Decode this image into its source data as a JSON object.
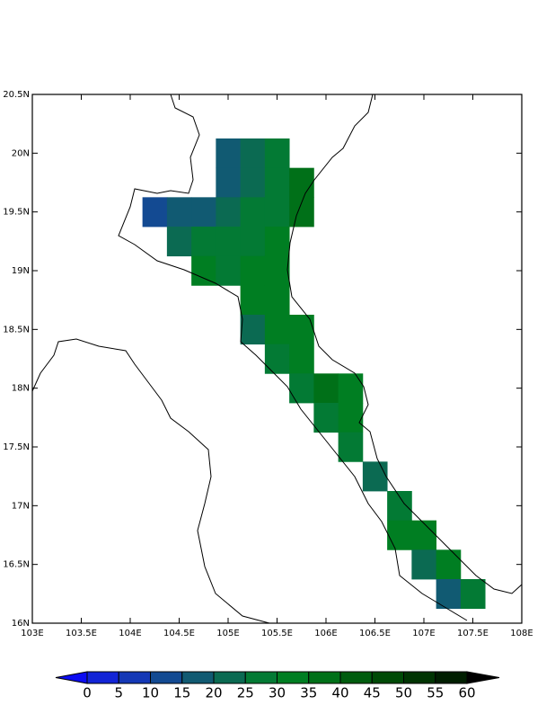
{
  "map": {
    "xlim": [
      103,
      108
    ],
    "ylim": [
      16,
      20.5
    ],
    "xticks": [
      {
        "value": 103,
        "label": "103E"
      },
      {
        "value": 103.5,
        "label": "103.5E"
      },
      {
        "value": 104,
        "label": "104E"
      },
      {
        "value": 104.5,
        "label": "104.5E"
      },
      {
        "value": 105,
        "label": "105E"
      },
      {
        "value": 105.5,
        "label": "105.5E"
      },
      {
        "value": 106,
        "label": "106E"
      },
      {
        "value": 106.5,
        "label": "106.5E"
      },
      {
        "value": 107,
        "label": "107E"
      },
      {
        "value": 107.5,
        "label": "107.5E"
      },
      {
        "value": 108,
        "label": "108E"
      }
    ],
    "yticks": [
      {
        "value": 16,
        "label": "16N"
      },
      {
        "value": 16.5,
        "label": "16.5N"
      },
      {
        "value": 17,
        "label": "17N"
      },
      {
        "value": 17.5,
        "label": "17.5N"
      },
      {
        "value": 18,
        "label": "18N"
      },
      {
        "value": 18.5,
        "label": "18.5N"
      },
      {
        "value": 19,
        "label": "19N"
      },
      {
        "value": 19.5,
        "label": "19.5N"
      },
      {
        "value": 20,
        "label": "20N"
      },
      {
        "value": 20.5,
        "label": "20.5N"
      }
    ],
    "cells": [
      {
        "lon": 105.0,
        "lat": 20.0,
        "value": 15
      },
      {
        "lon": 105.25,
        "lat": 20.0,
        "value": 20
      },
      {
        "lon": 105.5,
        "lat": 20.0,
        "value": 28
      },
      {
        "lon": 105.0,
        "lat": 19.75,
        "value": 15
      },
      {
        "lon": 105.25,
        "lat": 19.75,
        "value": 22
      },
      {
        "lon": 105.5,
        "lat": 19.75,
        "value": 28
      },
      {
        "lon": 105.75,
        "lat": 19.75,
        "value": 35
      },
      {
        "lon": 104.25,
        "lat": 19.5,
        "value": 10
      },
      {
        "lon": 104.5,
        "lat": 19.5,
        "value": 15
      },
      {
        "lon": 104.75,
        "lat": 19.5,
        "value": 17
      },
      {
        "lon": 105.0,
        "lat": 19.5,
        "value": 22
      },
      {
        "lon": 105.25,
        "lat": 19.5,
        "value": 26
      },
      {
        "lon": 105.5,
        "lat": 19.5,
        "value": 28
      },
      {
        "lon": 105.75,
        "lat": 19.5,
        "value": 35
      },
      {
        "lon": 104.5,
        "lat": 19.25,
        "value": 22
      },
      {
        "lon": 104.75,
        "lat": 19.25,
        "value": 26
      },
      {
        "lon": 105.0,
        "lat": 19.25,
        "value": 27
      },
      {
        "lon": 105.25,
        "lat": 19.25,
        "value": 28
      },
      {
        "lon": 105.5,
        "lat": 19.25,
        "value": 32
      },
      {
        "lon": 104.75,
        "lat": 19.0,
        "value": 31
      },
      {
        "lon": 105.0,
        "lat": 19.0,
        "value": 28
      },
      {
        "lon": 105.25,
        "lat": 19.0,
        "value": 30
      },
      {
        "lon": 105.5,
        "lat": 19.0,
        "value": 33
      },
      {
        "lon": 105.25,
        "lat": 18.75,
        "value": 30
      },
      {
        "lon": 105.5,
        "lat": 18.75,
        "value": 32
      },
      {
        "lon": 105.25,
        "lat": 18.5,
        "value": 24
      },
      {
        "lon": 105.5,
        "lat": 18.5,
        "value": 32
      },
      {
        "lon": 105.75,
        "lat": 18.5,
        "value": 31
      },
      {
        "lon": 105.5,
        "lat": 18.25,
        "value": 26
      },
      {
        "lon": 105.75,
        "lat": 18.25,
        "value": 31
      },
      {
        "lon": 105.75,
        "lat": 18.0,
        "value": 28
      },
      {
        "lon": 106.0,
        "lat": 18.0,
        "value": 38
      },
      {
        "lon": 106.25,
        "lat": 18.0,
        "value": 34
      },
      {
        "lon": 106.0,
        "lat": 17.75,
        "value": 26
      },
      {
        "lon": 106.25,
        "lat": 17.75,
        "value": 31
      },
      {
        "lon": 106.25,
        "lat": 17.5,
        "value": 27
      },
      {
        "lon": 106.5,
        "lat": 17.25,
        "value": 22
      },
      {
        "lon": 106.75,
        "lat": 17.0,
        "value": 27
      },
      {
        "lon": 106.75,
        "lat": 16.75,
        "value": 31
      },
      {
        "lon": 107.0,
        "lat": 16.75,
        "value": 34
      },
      {
        "lon": 107.0,
        "lat": 16.5,
        "value": 22
      },
      {
        "lon": 107.25,
        "lat": 16.5,
        "value": 31
      },
      {
        "lon": 107.25,
        "lat": 16.25,
        "value": 16
      },
      {
        "lon": 107.5,
        "lat": 16.25,
        "value": 28
      }
    ],
    "colorbar": {
      "levels": [
        0,
        5,
        10,
        15,
        20,
        25,
        30,
        35,
        40,
        45,
        50,
        55,
        60
      ],
      "colors": [
        "#0c0cf2",
        "#1224d6",
        "#1438b6",
        "#134a92",
        "#115a72",
        "#0b6a52",
        "#037a34",
        "#007e22",
        "#007018",
        "#005c0e",
        "#004a06",
        "#003402",
        "#001e00",
        "#000000"
      ]
    }
  }
}
